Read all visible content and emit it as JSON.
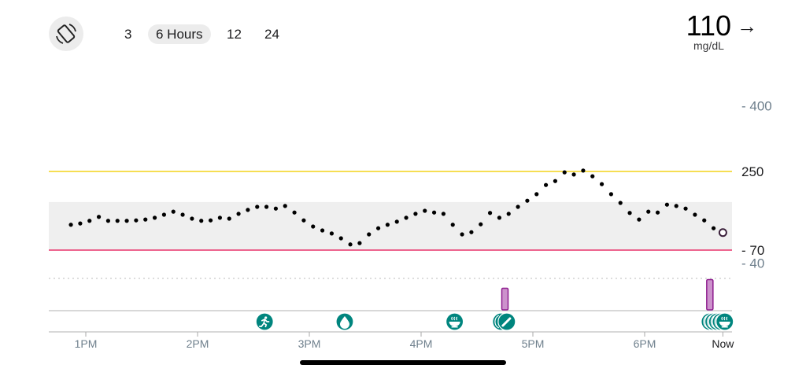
{
  "header": {
    "rotate_icon": "rotate-screen-icon",
    "ranges": [
      {
        "label": "3",
        "selected": false
      },
      {
        "label": "6 Hours",
        "selected": true
      },
      {
        "label": "12",
        "selected": false
      },
      {
        "label": "24",
        "selected": false
      }
    ],
    "current_reading": "110",
    "trend_icon": "arrow-right-icon",
    "unit": "mg/dL"
  },
  "colors": {
    "high_line": "#f3d31a",
    "low_line": "#e8336b",
    "target_band": "#efefef",
    "event_teal": "#00857e",
    "insulin_fill": "#cc92cc",
    "insulin_border": "#8e1c8e"
  },
  "chart_data": {
    "type": "scatter",
    "y_ticks": [
      {
        "label": "- 400",
        "value": 400,
        "muted": true
      },
      {
        "label": "250",
        "value": 250,
        "muted": false
      },
      {
        "label": "- 70",
        "value": 70,
        "muted": false
      },
      {
        "label": "- 40",
        "value": 40,
        "muted": true
      }
    ],
    "high_threshold": 250,
    "low_threshold": 70,
    "target_range": [
      70,
      180
    ],
    "x_ticks": [
      {
        "label": "1PM",
        "time": "13:00"
      },
      {
        "label": "2PM",
        "time": "14:00"
      },
      {
        "label": "3PM",
        "time": "15:00"
      },
      {
        "label": "4PM",
        "time": "16:00"
      },
      {
        "label": "5PM",
        "time": "17:00"
      },
      {
        "label": "6PM",
        "time": "18:00"
      },
      {
        "label": "Now",
        "time": "18:42"
      }
    ],
    "start_time": "12:52",
    "interval_minutes": 5,
    "values": [
      128,
      131,
      137,
      146,
      137,
      137,
      137,
      138,
      140,
      144,
      151,
      158,
      151,
      142,
      137,
      138,
      144,
      142,
      153,
      162,
      169,
      169,
      165,
      171,
      156,
      138,
      124,
      115,
      108,
      97,
      83,
      86,
      106,
      120,
      128,
      135,
      144,
      153,
      160,
      156,
      153,
      128,
      106,
      111,
      129,
      155,
      144,
      153,
      169,
      183,
      198,
      219,
      228,
      248,
      243,
      252,
      239,
      221,
      198,
      178,
      155,
      140,
      158,
      156,
      174,
      171,
      165,
      151,
      138,
      120,
      110
    ],
    "events": [
      {
        "type": "exercise",
        "icon": "running-icon",
        "time": "14:36"
      },
      {
        "type": "blood-glucose",
        "icon": "drop-icon",
        "time": "15:19"
      },
      {
        "type": "meal",
        "icon": "bowl-icon",
        "time": "16:18"
      },
      {
        "type": "note",
        "icon": "circle-icon",
        "time": "16:43"
      },
      {
        "type": "note",
        "icon": "pencil-icon",
        "time": "16:46"
      },
      {
        "type": "event",
        "icon": "circle-icon",
        "time": "18:35"
      },
      {
        "type": "event",
        "icon": "circle-icon",
        "time": "18:37"
      },
      {
        "type": "event",
        "icon": "circle-icon",
        "time": "18:39"
      },
      {
        "type": "event",
        "icon": "circle-icon",
        "time": "18:41"
      },
      {
        "type": "meal",
        "icon": "bowl-icon",
        "time": "18:43"
      }
    ],
    "insulin": [
      {
        "time": "16:45",
        "level": 0.5
      },
      {
        "time": "18:35",
        "level": 0.7
      }
    ]
  }
}
